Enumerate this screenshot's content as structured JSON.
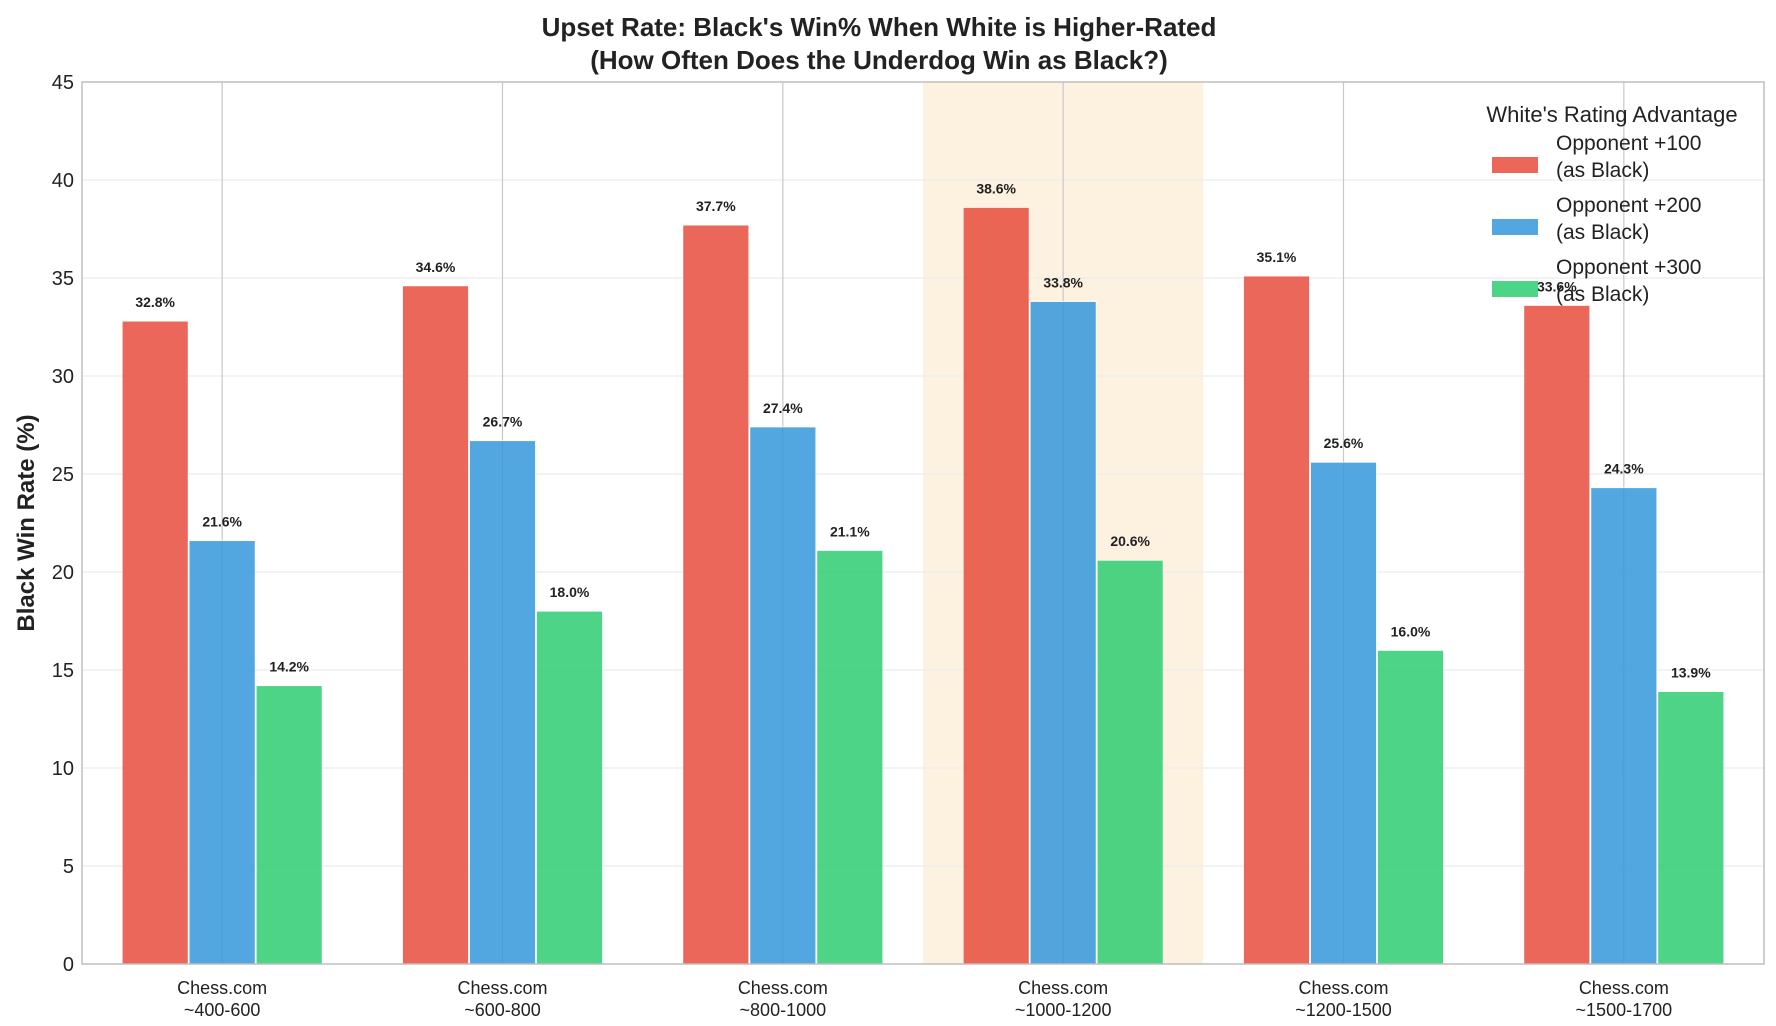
{
  "chart_data": {
    "type": "bar",
    "title_line1": "Upset Rate: Black's Win% When White is Higher-Rated",
    "title_line2": "(How Often Does the Underdog Win as Black?)",
    "xlabel": "",
    "ylabel": "Black Win Rate (%)",
    "ylim": [
      0,
      45
    ],
    "yticks": [
      "0",
      "5",
      "10",
      "15",
      "20",
      "25",
      "30",
      "35",
      "40",
      "45"
    ],
    "categories": [
      [
        "Chess.com",
        "~400-600"
      ],
      [
        "Chess.com",
        "~600-800"
      ],
      [
        "Chess.com",
        "~800-1000"
      ],
      [
        "Chess.com",
        "~1000-1200"
      ],
      [
        "Chess.com",
        "~1200-1500"
      ],
      [
        "Chess.com",
        "~1500-1700"
      ]
    ],
    "highlighted_category_index": 3,
    "highlight_color": "#fdf1e0",
    "legend_title": "White's Rating Advantage",
    "legend_position": "top-right",
    "grid": true,
    "series": [
      {
        "name": [
          "Opponent +100",
          "(as Black)"
        ],
        "color": "#e74c3c",
        "values": [
          32.8,
          34.6,
          37.7,
          38.6,
          35.1,
          33.6
        ],
        "labels": [
          "32.8%",
          "34.6%",
          "37.7%",
          "38.6%",
          "35.1%",
          "33.6%"
        ]
      },
      {
        "name": [
          "Opponent +200",
          "(as Black)"
        ],
        "color": "#3498db",
        "values": [
          21.6,
          26.7,
          27.4,
          33.8,
          25.6,
          24.3
        ],
        "labels": [
          "21.6%",
          "26.7%",
          "27.4%",
          "33.8%",
          "25.6%",
          "24.3%"
        ]
      },
      {
        "name": [
          "Opponent +300",
          "(as Black)"
        ],
        "color": "#2ecc71",
        "values": [
          14.2,
          18.0,
          21.1,
          20.6,
          16.0,
          13.9
        ],
        "labels": [
          "14.2%",
          "18.0%",
          "21.1%",
          "20.6%",
          "16.0%",
          "13.9%"
        ]
      }
    ]
  }
}
